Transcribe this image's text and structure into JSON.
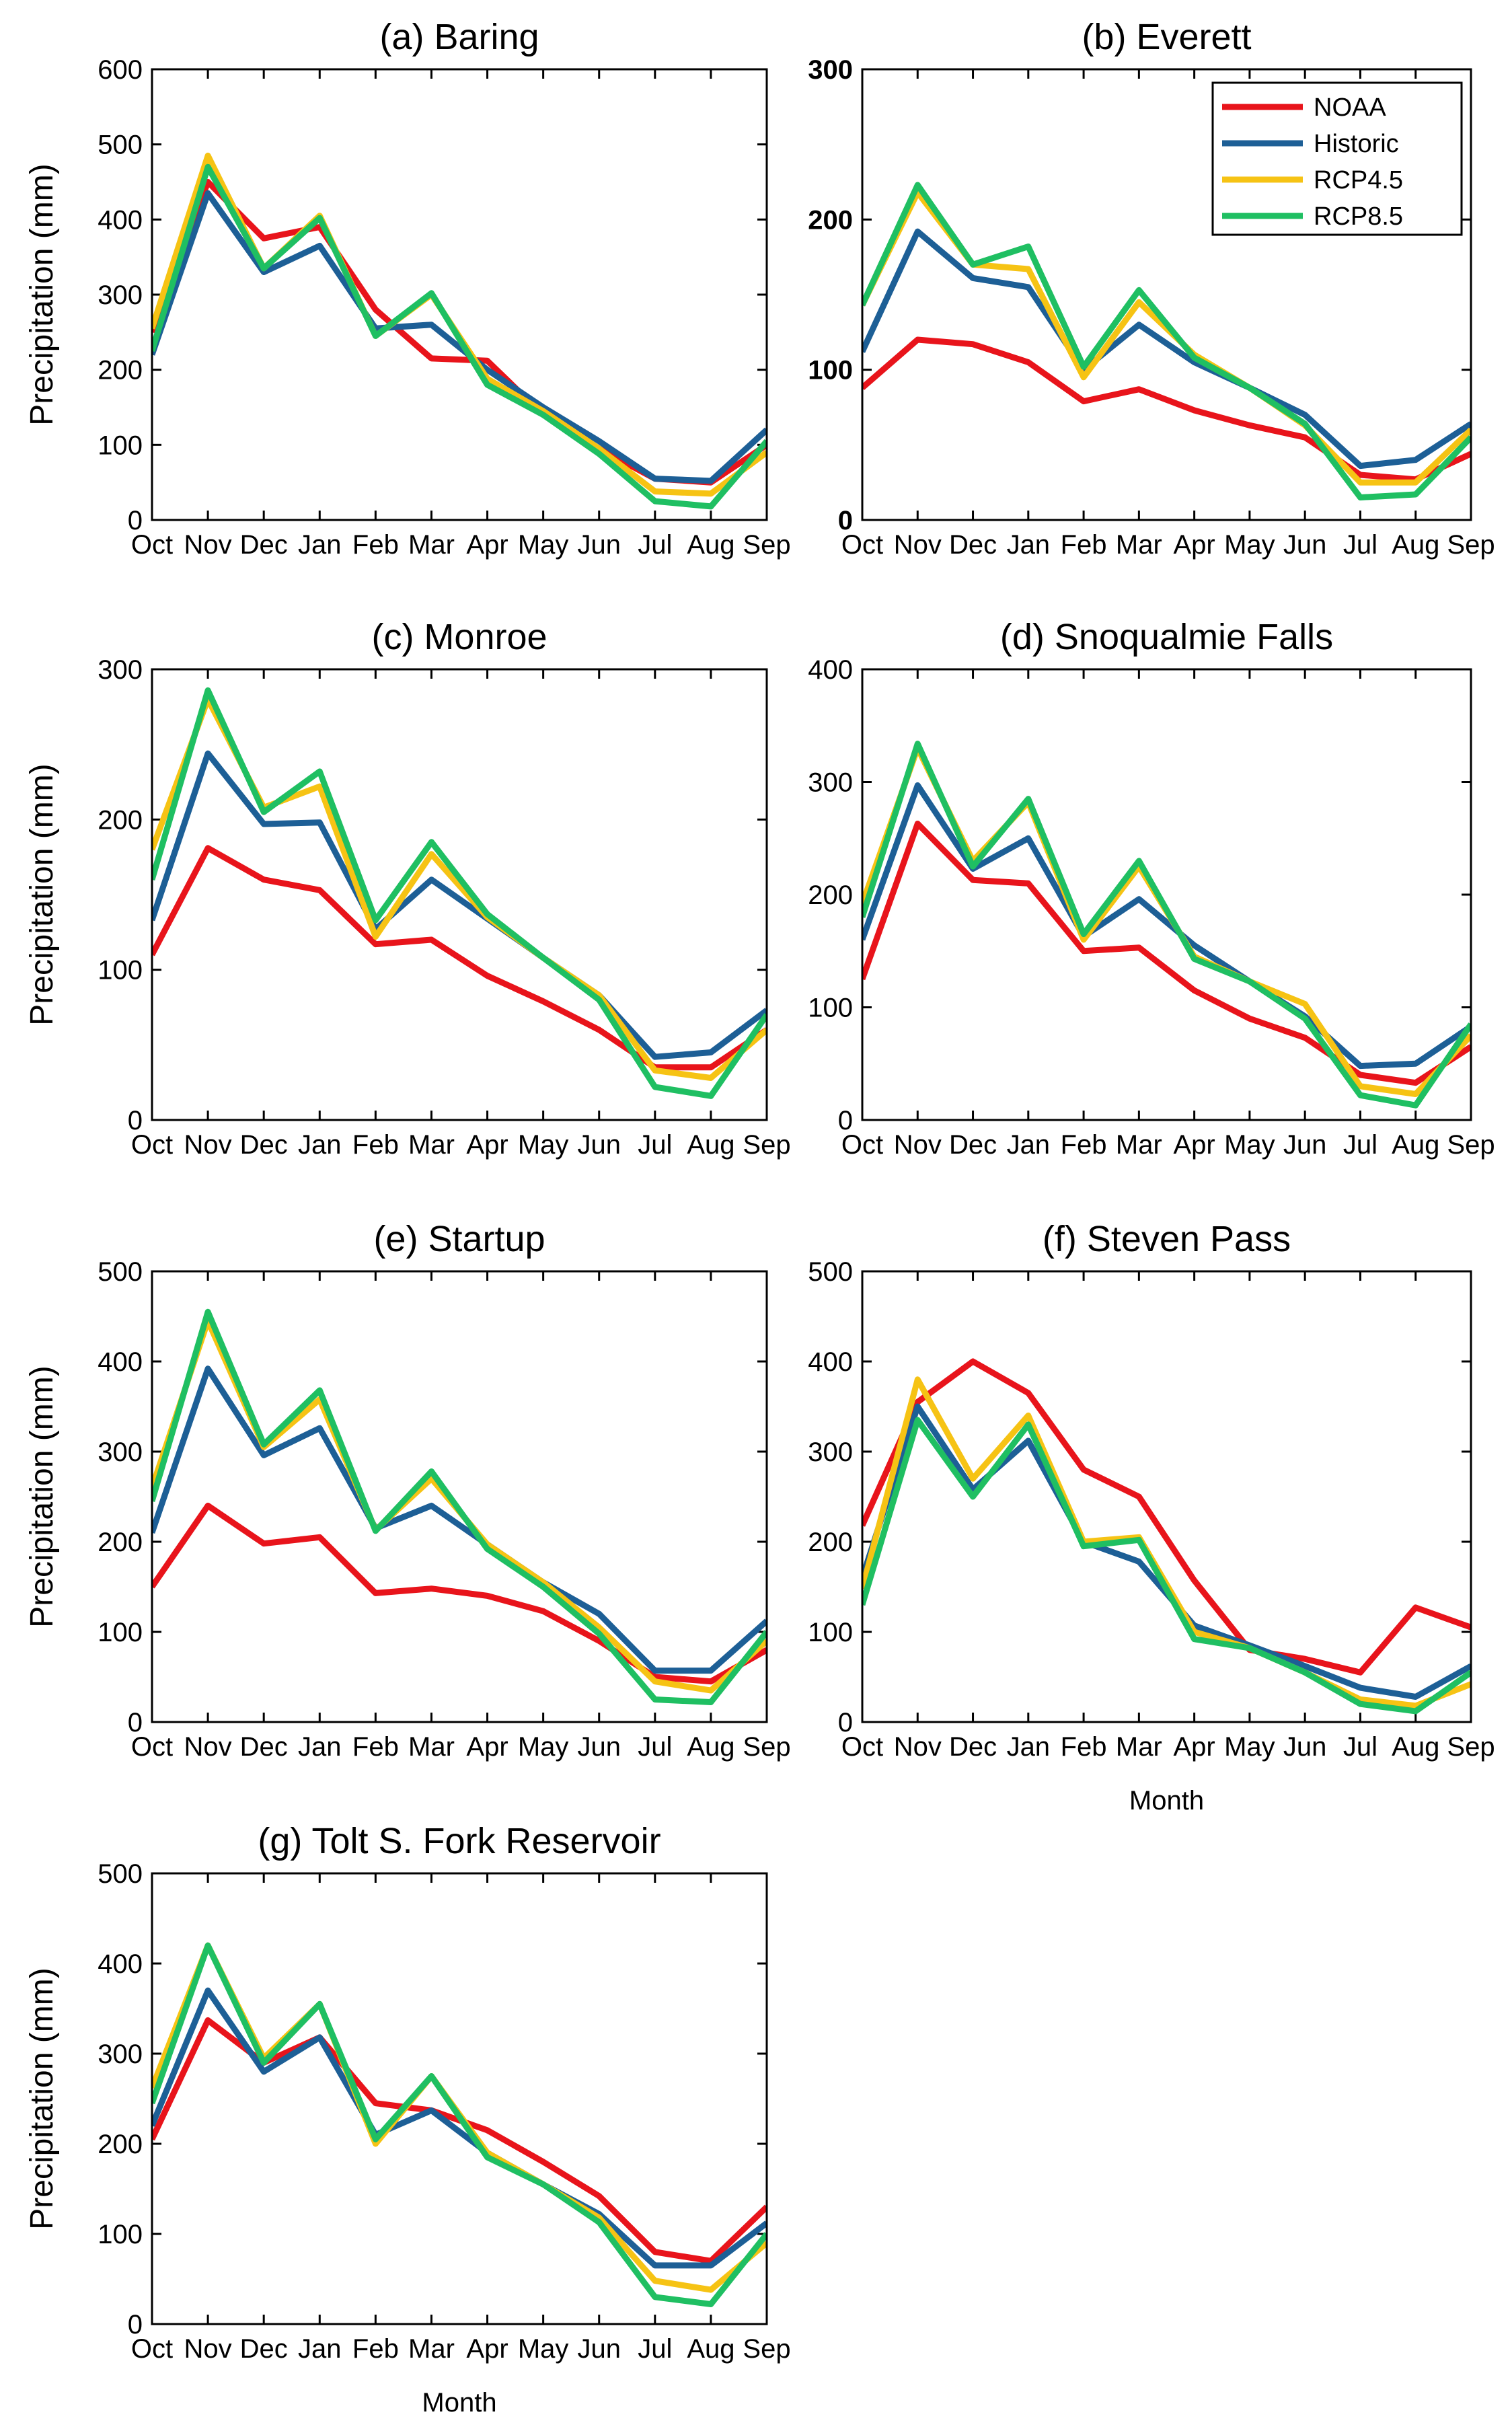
{
  "colors": {
    "NOAA": "#e8141b",
    "Historic": "#1d5f96",
    "RCP4.5": "#f6c314",
    "RCP8.5": "#1fbf62"
  },
  "legend": [
    "NOAA",
    "Historic",
    "RCP4.5",
    "RCP8.5"
  ],
  "chart_data": [
    {
      "type": "line",
      "title": "(a) Baring",
      "ylabel": "Precipitation (mm)",
      "xlabel": "",
      "categories": [
        "Oct",
        "Nov",
        "Dec",
        "Jan",
        "Feb",
        "Mar",
        "Apr",
        "May",
        "Jun",
        "Jul",
        "Aug",
        "Sep"
      ],
      "ylim": [
        0,
        600
      ],
      "yticks": [
        "0",
        "100",
        "200",
        "300",
        "400",
        "500",
        "600"
      ],
      "bold_ticks": false,
      "series": [
        {
          "name": "NOAA",
          "values": [
            250,
            450,
            375,
            390,
            280,
            215,
            212,
            140,
            95,
            55,
            50,
            100
          ]
        },
        {
          "name": "Historic",
          "values": [
            220,
            435,
            330,
            365,
            255,
            260,
            200,
            150,
            105,
            55,
            52,
            120
          ]
        },
        {
          "name": "RCP4.5",
          "values": [
            255,
            485,
            335,
            405,
            245,
            300,
            188,
            145,
            95,
            38,
            35,
            90
          ]
        },
        {
          "name": "RCP8.5",
          "values": [
            225,
            470,
            335,
            402,
            245,
            302,
            180,
            140,
            88,
            25,
            18,
            105
          ]
        }
      ]
    },
    {
      "type": "line",
      "title": "(b) Everett",
      "ylabel": "",
      "xlabel": "",
      "categories": [
        "Oct",
        "Nov",
        "Dec",
        "Jan",
        "Feb",
        "Mar",
        "Apr",
        "May",
        "Jun",
        "Jul",
        "Aug",
        "Sep"
      ],
      "ylim": [
        0,
        300
      ],
      "yticks": [
        "0",
        "100",
        "200",
        "300"
      ],
      "bold_ticks": true,
      "legend_position": "top-right",
      "series": [
        {
          "name": "NOAA",
          "values": [
            88,
            120,
            117,
            105,
            79,
            87,
            73,
            63,
            55,
            30,
            27,
            44
          ]
        },
        {
          "name": "Historic",
          "values": [
            112,
            192,
            161,
            155,
            100,
            130,
            105,
            88,
            70,
            36,
            40,
            64
          ]
        },
        {
          "name": "RCP4.5",
          "values": [
            143,
            218,
            170,
            167,
            95,
            145,
            110,
            88,
            63,
            25,
            25,
            60
          ]
        },
        {
          "name": "RCP8.5",
          "values": [
            143,
            223,
            170,
            182,
            102,
            153,
            108,
            88,
            64,
            15,
            17,
            55
          ]
        }
      ]
    },
    {
      "type": "line",
      "title": "(c) Monroe",
      "ylabel": "Precipitation (mm)",
      "xlabel": "",
      "categories": [
        "Oct",
        "Nov",
        "Dec",
        "Jan",
        "Feb",
        "Mar",
        "Apr",
        "May",
        "Jun",
        "Jul",
        "Aug",
        "Sep"
      ],
      "ylim": [
        0,
        300
      ],
      "yticks": [
        "0",
        "100",
        "200",
        "300"
      ],
      "bold_ticks": false,
      "series": [
        {
          "name": "NOAA",
          "values": [
            110,
            181,
            160,
            153,
            117,
            120,
            96,
            79,
            60,
            35,
            35,
            60
          ]
        },
        {
          "name": "Historic",
          "values": [
            133,
            244,
            197,
            198,
            127,
            160,
            134,
            108,
            83,
            42,
            45,
            73
          ]
        },
        {
          "name": "RCP4.5",
          "values": [
            180,
            280,
            208,
            222,
            122,
            177,
            135,
            108,
            83,
            33,
            28,
            60
          ]
        },
        {
          "name": "RCP8.5",
          "values": [
            160,
            286,
            205,
            232,
            133,
            185,
            137,
            108,
            80,
            22,
            16,
            70
          ]
        }
      ]
    },
    {
      "type": "line",
      "title": "(d) Snoqualmie Falls",
      "ylabel": "",
      "xlabel": "",
      "categories": [
        "Oct",
        "Nov",
        "Dec",
        "Jan",
        "Feb",
        "Mar",
        "Apr",
        "May",
        "Jun",
        "Jul",
        "Aug",
        "Sep"
      ],
      "ylim": [
        0,
        400
      ],
      "yticks": [
        "0",
        "100",
        "200",
        "300",
        "400"
      ],
      "bold_ticks": false,
      "series": [
        {
          "name": "NOAA",
          "values": [
            125,
            263,
            213,
            210,
            150,
            153,
            115,
            90,
            73,
            40,
            33,
            65
          ]
        },
        {
          "name": "Historic",
          "values": [
            160,
            297,
            223,
            250,
            163,
            196,
            155,
            123,
            92,
            48,
            50,
            83
          ]
        },
        {
          "name": "RCP4.5",
          "values": [
            192,
            330,
            230,
            282,
            160,
            225,
            145,
            123,
            103,
            30,
            23,
            75
          ]
        },
        {
          "name": "RCP8.5",
          "values": [
            180,
            334,
            225,
            285,
            165,
            230,
            143,
            123,
            90,
            22,
            13,
            85
          ]
        }
      ]
    },
    {
      "type": "line",
      "title": "(e) Startup",
      "ylabel": "Precipitation (mm)",
      "xlabel": "",
      "categories": [
        "Oct",
        "Nov",
        "Dec",
        "Jan",
        "Feb",
        "Mar",
        "Apr",
        "May",
        "Jun",
        "Jul",
        "Aug",
        "Sep"
      ],
      "ylim": [
        0,
        500
      ],
      "yticks": [
        "0",
        "100",
        "200",
        "300",
        "400",
        "500"
      ],
      "bold_ticks": false,
      "series": [
        {
          "name": "NOAA",
          "values": [
            150,
            240,
            198,
            205,
            143,
            148,
            140,
            123,
            90,
            50,
            45,
            80
          ]
        },
        {
          "name": "Historic",
          "values": [
            210,
            392,
            296,
            326,
            215,
            240,
            197,
            155,
            120,
            57,
            57,
            112
          ]
        },
        {
          "name": "RCP4.5",
          "values": [
            260,
            445,
            305,
            358,
            213,
            270,
            197,
            155,
            105,
            45,
            35,
            90
          ]
        },
        {
          "name": "RCP8.5",
          "values": [
            245,
            455,
            308,
            368,
            212,
            278,
            192,
            150,
            98,
            25,
            22,
            100
          ]
        }
      ]
    },
    {
      "type": "line",
      "title": "(f) Steven Pass",
      "ylabel": "",
      "xlabel": "Month",
      "categories": [
        "Oct",
        "Nov",
        "Dec",
        "Jan",
        "Feb",
        "Mar",
        "Apr",
        "May",
        "Jun",
        "Jul",
        "Aug",
        "Sep"
      ],
      "ylim": [
        0,
        500
      ],
      "yticks": [
        "0",
        "100",
        "200",
        "300",
        "400",
        "500"
      ],
      "bold_ticks": false,
      "series": [
        {
          "name": "NOAA",
          "values": [
            218,
            355,
            400,
            365,
            280,
            250,
            157,
            80,
            70,
            55,
            127,
            105
          ]
        },
        {
          "name": "Historic",
          "values": [
            160,
            350,
            258,
            312,
            200,
            178,
            107,
            85,
            62,
            38,
            28,
            62
          ]
        },
        {
          "name": "RCP4.5",
          "values": [
            148,
            380,
            270,
            340,
            200,
            205,
            100,
            82,
            55,
            25,
            18,
            42
          ]
        },
        {
          "name": "RCP8.5",
          "values": [
            130,
            335,
            250,
            330,
            195,
            202,
            92,
            82,
            55,
            20,
            12,
            55
          ]
        }
      ]
    },
    {
      "type": "line",
      "title": "(g) Tolt S. Fork Reservoir",
      "ylabel": "Precipitation (mm)",
      "xlabel": "Month",
      "categories": [
        "Oct",
        "Nov",
        "Dec",
        "Jan",
        "Feb",
        "Mar",
        "Apr",
        "May",
        "Jun",
        "Jul",
        "Aug",
        "Sep"
      ],
      "ylim": [
        0,
        500
      ],
      "yticks": [
        "0",
        "100",
        "200",
        "300",
        "400",
        "500"
      ],
      "bold_ticks": false,
      "series": [
        {
          "name": "NOAA",
          "values": [
            205,
            337,
            290,
            318,
            245,
            237,
            215,
            180,
            142,
            80,
            70,
            130
          ]
        },
        {
          "name": "Historic",
          "values": [
            220,
            370,
            280,
            318,
            210,
            237,
            190,
            155,
            122,
            65,
            65,
            112
          ]
        },
        {
          "name": "RCP4.5",
          "values": [
            262,
            420,
            295,
            355,
            200,
            275,
            190,
            155,
            118,
            48,
            38,
            90
          ]
        },
        {
          "name": "RCP8.5",
          "values": [
            245,
            420,
            290,
            355,
            205,
            275,
            185,
            155,
            113,
            30,
            22,
            100
          ]
        }
      ]
    }
  ]
}
